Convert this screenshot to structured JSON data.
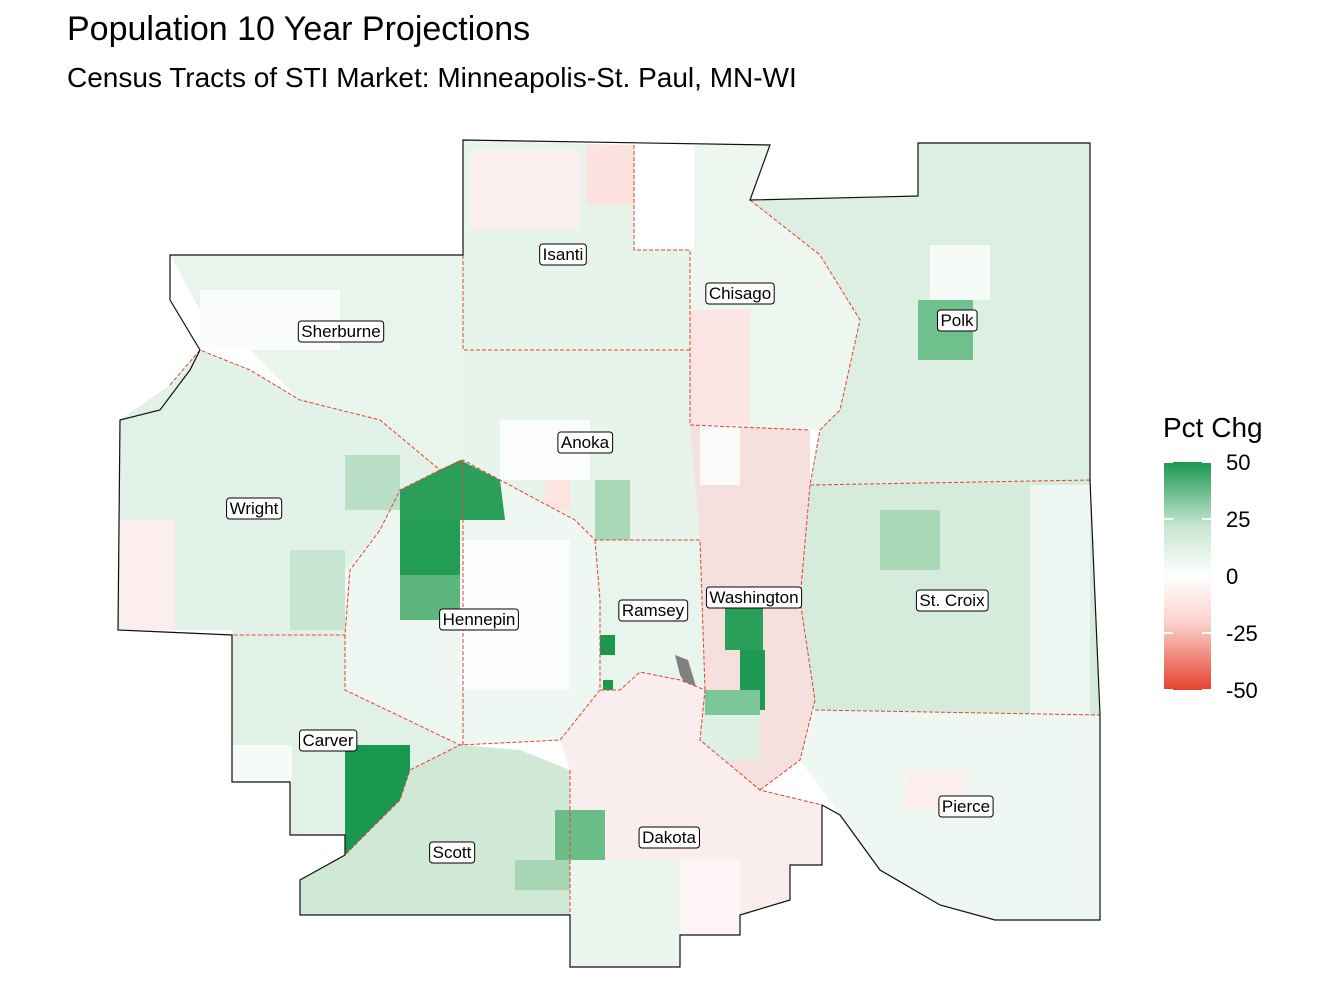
{
  "title": "Population 10 Year Projections",
  "subtitle": "Census Tracts of STI Market: Minneapolis-St. Paul, MN-WI",
  "legend": {
    "title": "Pct Chg",
    "ticks": [
      "50",
      "25",
      "0",
      "-25",
      "-50"
    ],
    "colors": {
      "high": "#1a9850",
      "mid": "#ffffff",
      "low": "#e5422f",
      "na": "#808080"
    }
  },
  "counties": [
    {
      "name": "Isanti"
    },
    {
      "name": "Chisago"
    },
    {
      "name": "Polk"
    },
    {
      "name": "Sherburne"
    },
    {
      "name": "Anoka"
    },
    {
      "name": "Wright"
    },
    {
      "name": "Washington"
    },
    {
      "name": "St. Croix"
    },
    {
      "name": "Ramsey"
    },
    {
      "name": "Hennepin"
    },
    {
      "name": "Carver"
    },
    {
      "name": "Pierce"
    },
    {
      "name": "Dakota"
    },
    {
      "name": "Scott"
    }
  ]
}
